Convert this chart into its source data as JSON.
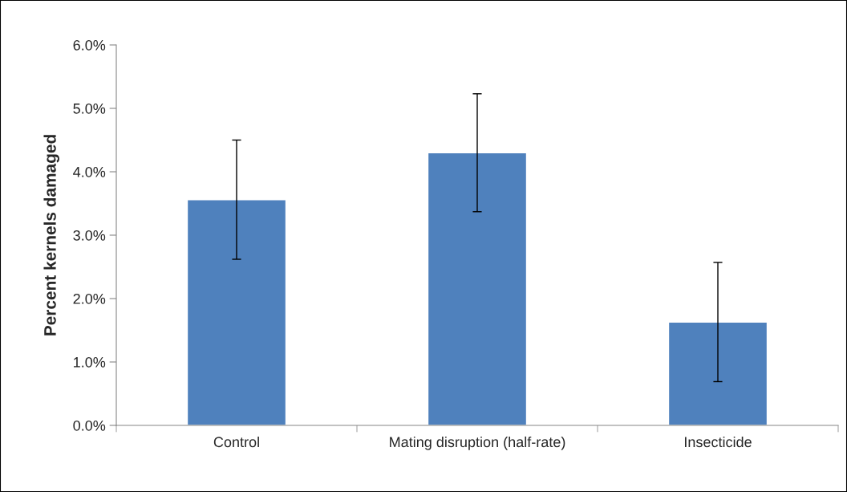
{
  "chart_data": {
    "type": "bar",
    "ylabel": "Percent kernels damaged",
    "categories": [
      "Control",
      "Mating disruption (half-rate)",
      "Insecticide"
    ],
    "values": [
      3.56,
      4.3,
      1.63
    ],
    "errors": [
      0.94,
      0.93,
      0.94
    ],
    "color": "#4f81bd",
    "ylim": [
      0,
      6
    ],
    "yticks": [
      {
        "value": 0,
        "label": "0.0%"
      },
      {
        "value": 1,
        "label": "1.0%"
      },
      {
        "value": 2,
        "label": "2.0%"
      },
      {
        "value": 3,
        "label": "3.0%"
      },
      {
        "value": 4,
        "label": "4.0%"
      },
      {
        "value": 5,
        "label": "5.0%"
      },
      {
        "value": 6,
        "label": "6.0%"
      }
    ],
    "grid": false
  }
}
